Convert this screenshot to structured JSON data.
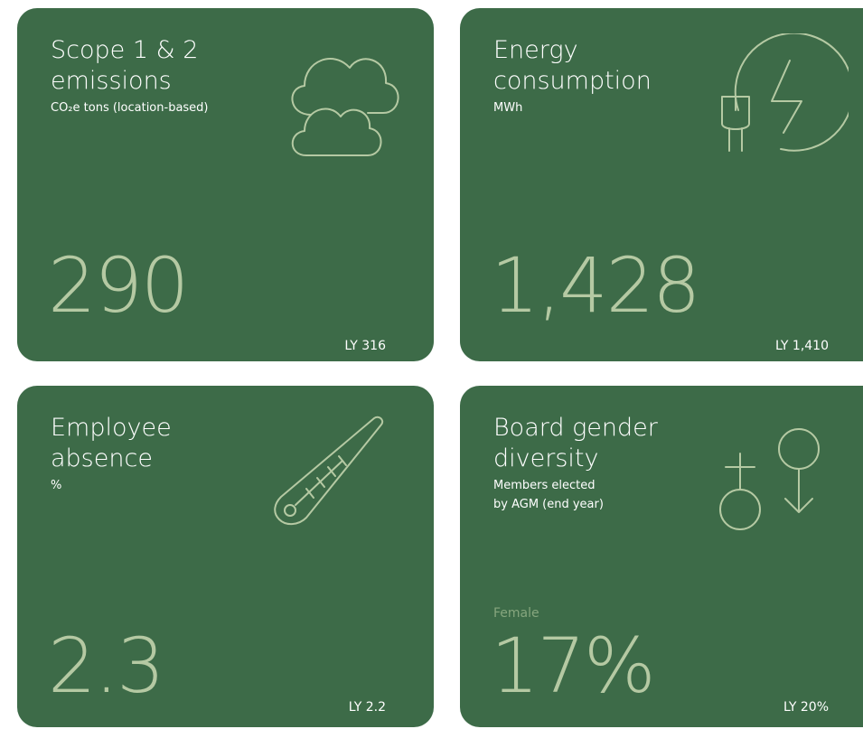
{
  "cards": [
    {
      "title": "Scope 1 & 2 emissions",
      "subtitle": "CO₂e tons (location-based)",
      "value": "290",
      "last_year": "LY 316"
    },
    {
      "title": "Energy consumption",
      "subtitle": "MWh",
      "value": "1,428",
      "last_year": "LY 1,410"
    },
    {
      "title": "Employee absence",
      "subtitle": "%",
      "value": "2.3",
      "last_year": "LY 2.2"
    },
    {
      "title": "Board gender diversity",
      "subtitle": "Members elected by AGM (end year)",
      "label": "Female",
      "value": "17%",
      "last_year": "LY 20%"
    }
  ]
}
